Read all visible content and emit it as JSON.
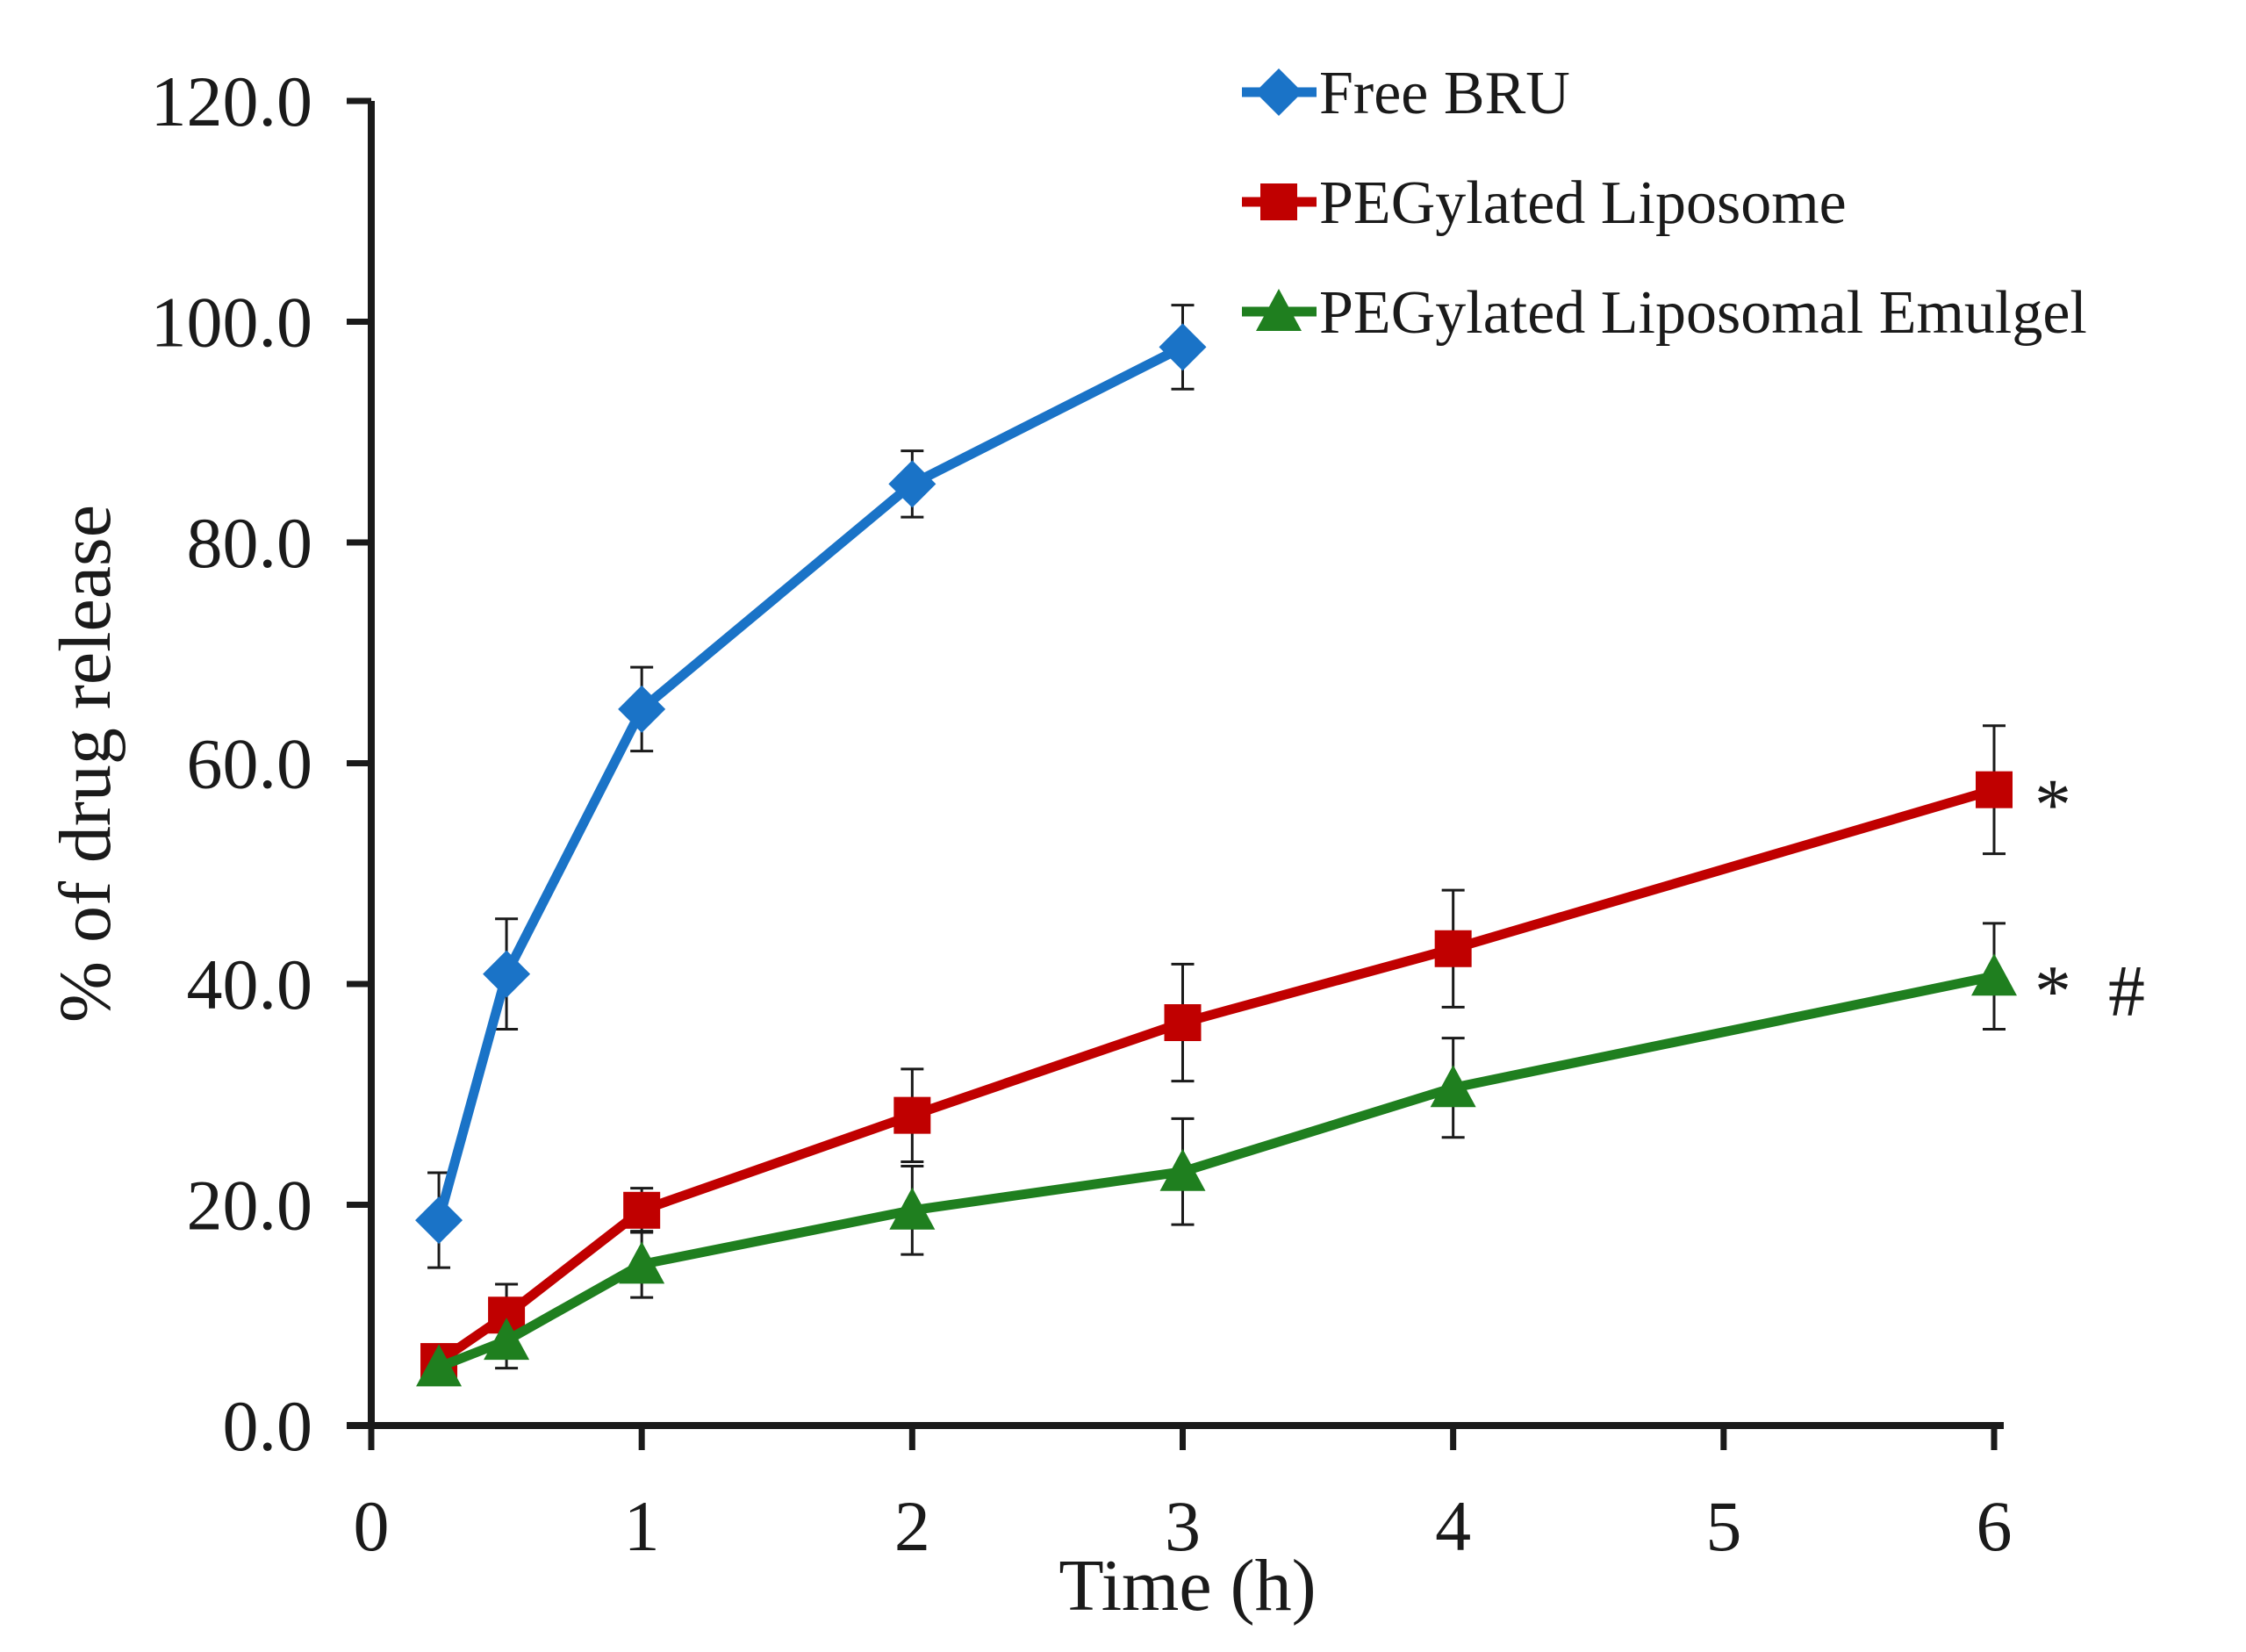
{
  "chart_data": {
    "type": "line",
    "title": "",
    "xlabel": "Time (h)",
    "ylabel": "% of drug release",
    "xlim": [
      0,
      6
    ],
    "ylim": [
      0,
      120
    ],
    "x_ticks": [
      "0",
      "1",
      "2",
      "3",
      "4",
      "5",
      "6"
    ],
    "y_ticks": [
      "0.0",
      "20.0",
      "40.0",
      "60.0",
      "80.0",
      "100.0",
      "120.0"
    ],
    "grid": false,
    "legend_position": "top-right",
    "series": [
      {
        "name": "Free BRU",
        "color": "#1a73c7",
        "marker": "diamond",
        "x": [
          0.25,
          0.5,
          1,
          2,
          3
        ],
        "y": [
          18.6,
          40.9,
          64.9,
          85.3,
          97.7
        ],
        "err": [
          4.3,
          5.0,
          3.8,
          3.0,
          3.8
        ]
      },
      {
        "name": "PEGylated Liposome",
        "color": "#c00000",
        "marker": "square",
        "x": [
          0.25,
          0.5,
          1,
          2,
          3,
          4,
          6
        ],
        "y": [
          5.8,
          10.0,
          19.5,
          28.1,
          36.5,
          43.2,
          57.6
        ],
        "err": [
          1.5,
          2.8,
          2.0,
          4.2,
          5.3,
          5.3,
          5.8
        ]
      },
      {
        "name": "PEGylated Liposomal Emulgel",
        "color": "#1f7f1f",
        "marker": "triangle",
        "x": [
          0.25,
          0.5,
          1,
          2,
          3,
          4,
          6
        ],
        "y": [
          5.3,
          7.7,
          14.6,
          19.5,
          23.0,
          30.6,
          40.7
        ],
        "err": [
          1.2,
          2.5,
          3.0,
          4.0,
          4.8,
          4.5,
          4.8
        ]
      }
    ],
    "annotations": [
      {
        "series": "PEGylated Liposome",
        "text": "*"
      },
      {
        "series": "PEGylated Liposomal Emulgel",
        "text": "* #"
      }
    ]
  }
}
